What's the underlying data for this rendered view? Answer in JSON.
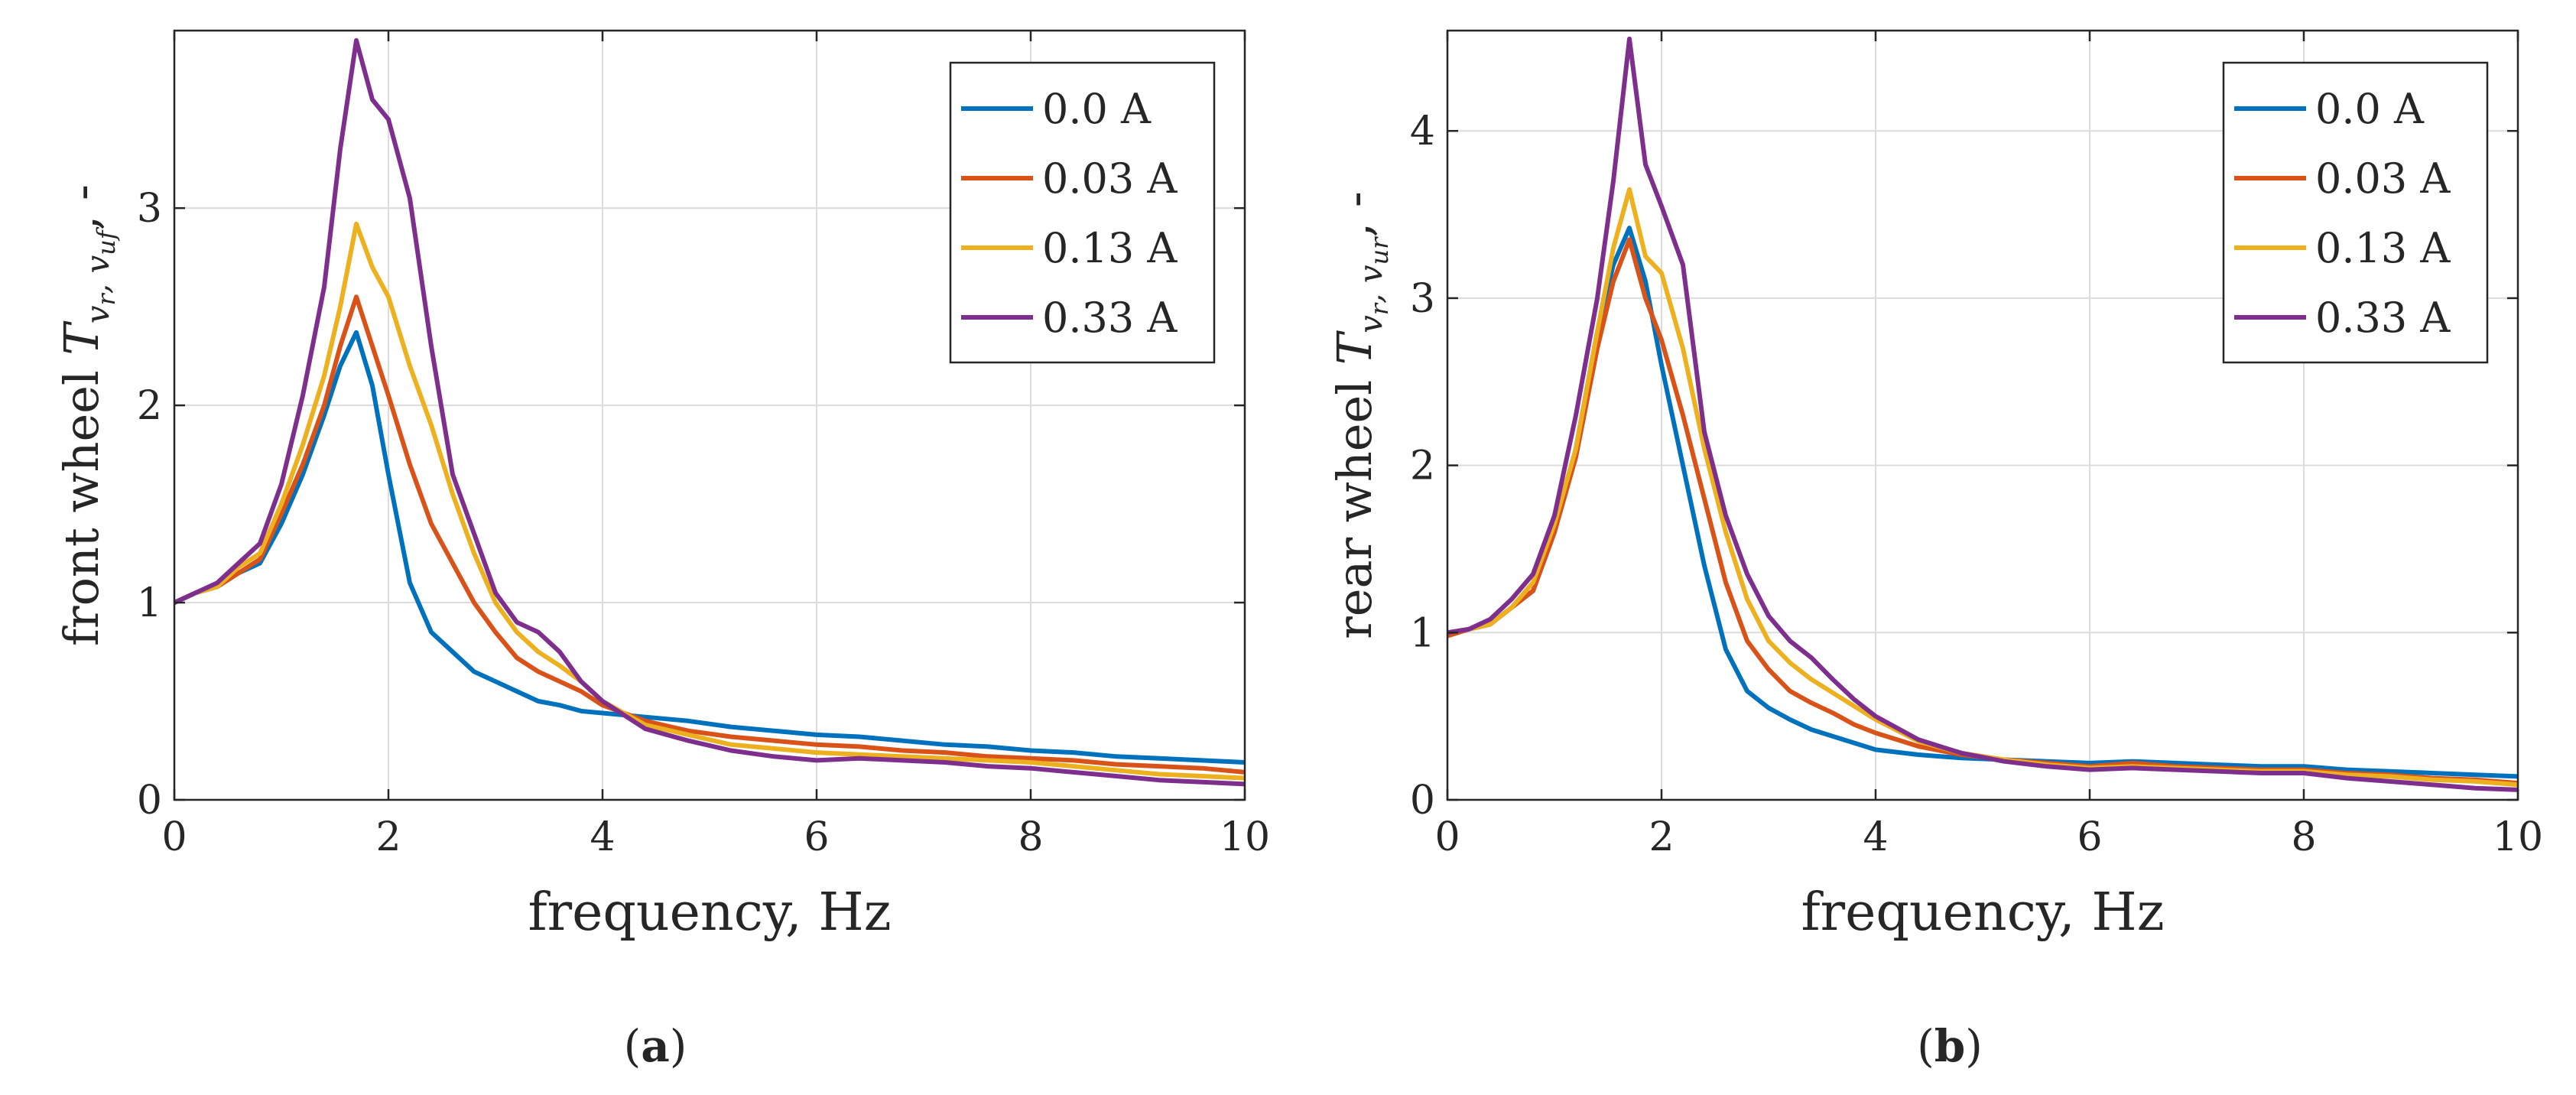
{
  "colors": {
    "series": [
      "#0072BD",
      "#D95319",
      "#EDB120",
      "#7E2F8E"
    ],
    "grid": "#dcdcdc",
    "axis": "#262626"
  },
  "chart_data": [
    {
      "type": "line",
      "panel_label": "a",
      "xlabel": "frequency, Hz",
      "ylabel_prefix": "front wheel ",
      "ylabel_symbol": "T",
      "ylabel_subscript": "v",
      "ylabel_sub2": "r",
      "ylabel_sub3": ", v",
      "ylabel_sub4": "uf",
      "ylabel_suffix": ", -",
      "xlim": [
        0,
        10
      ],
      "ylim": [
        0,
        3.9
      ],
      "xticks": [
        "0",
        "2",
        "4",
        "6",
        "8",
        "10"
      ],
      "yticks": [
        "0",
        "1",
        "2",
        "3"
      ],
      "grid": true,
      "legend_position": "top-right",
      "series": [
        {
          "name": "0.0 A",
          "x": [
            0,
            0.2,
            0.4,
            0.6,
            0.8,
            1.0,
            1.2,
            1.4,
            1.55,
            1.7,
            1.85,
            2.0,
            2.2,
            2.4,
            2.6,
            2.8,
            3.0,
            3.2,
            3.4,
            3.6,
            3.8,
            4.0,
            4.4,
            4.8,
            5.2,
            5.6,
            6.0,
            6.4,
            6.8,
            7.2,
            7.6,
            8.0,
            8.4,
            8.8,
            9.2,
            9.6,
            10.0
          ],
          "y": [
            1.0,
            1.05,
            1.08,
            1.15,
            1.2,
            1.4,
            1.65,
            1.95,
            2.2,
            2.37,
            2.1,
            1.65,
            1.1,
            0.85,
            0.75,
            0.65,
            0.6,
            0.55,
            0.5,
            0.48,
            0.45,
            0.44,
            0.42,
            0.4,
            0.37,
            0.35,
            0.33,
            0.32,
            0.3,
            0.28,
            0.27,
            0.25,
            0.24,
            0.22,
            0.21,
            0.2,
            0.19
          ]
        },
        {
          "name": "0.03 A",
          "x": [
            0,
            0.2,
            0.4,
            0.6,
            0.8,
            1.0,
            1.2,
            1.4,
            1.55,
            1.7,
            1.85,
            2.0,
            2.2,
            2.4,
            2.6,
            2.8,
            3.0,
            3.2,
            3.4,
            3.6,
            3.8,
            4.0,
            4.4,
            4.8,
            5.2,
            5.6,
            6.0,
            6.4,
            6.8,
            7.2,
            7.6,
            8.0,
            8.4,
            8.8,
            9.2,
            9.6,
            10.0
          ],
          "y": [
            1.0,
            1.05,
            1.08,
            1.15,
            1.22,
            1.45,
            1.7,
            2.0,
            2.3,
            2.55,
            2.3,
            2.05,
            1.7,
            1.4,
            1.2,
            1.0,
            0.85,
            0.72,
            0.65,
            0.6,
            0.55,
            0.48,
            0.4,
            0.35,
            0.32,
            0.3,
            0.28,
            0.27,
            0.25,
            0.24,
            0.22,
            0.21,
            0.2,
            0.18,
            0.17,
            0.16,
            0.14
          ]
        },
        {
          "name": "0.13 A",
          "x": [
            0,
            0.2,
            0.4,
            0.6,
            0.8,
            1.0,
            1.2,
            1.4,
            1.55,
            1.7,
            1.85,
            2.0,
            2.2,
            2.4,
            2.6,
            2.8,
            3.0,
            3.2,
            3.4,
            3.6,
            3.8,
            4.0,
            4.4,
            4.8,
            5.2,
            5.6,
            6.0,
            6.4,
            6.8,
            7.2,
            7.6,
            8.0,
            8.4,
            8.8,
            9.2,
            9.6,
            10.0
          ],
          "y": [
            1.0,
            1.05,
            1.08,
            1.18,
            1.25,
            1.5,
            1.8,
            2.15,
            2.5,
            2.92,
            2.7,
            2.55,
            2.2,
            1.9,
            1.55,
            1.25,
            1.0,
            0.85,
            0.75,
            0.68,
            0.6,
            0.5,
            0.38,
            0.33,
            0.28,
            0.26,
            0.24,
            0.23,
            0.22,
            0.21,
            0.2,
            0.19,
            0.17,
            0.15,
            0.13,
            0.12,
            0.11
          ]
        },
        {
          "name": "0.33 A",
          "x": [
            0,
            0.2,
            0.4,
            0.6,
            0.8,
            1.0,
            1.2,
            1.4,
            1.55,
            1.7,
            1.85,
            2.0,
            2.2,
            2.4,
            2.6,
            2.8,
            3.0,
            3.2,
            3.4,
            3.6,
            3.8,
            4.0,
            4.4,
            4.8,
            5.2,
            5.6,
            6.0,
            6.4,
            6.8,
            7.2,
            7.6,
            8.0,
            8.4,
            8.8,
            9.2,
            9.6,
            10.0
          ],
          "y": [
            1.0,
            1.05,
            1.1,
            1.2,
            1.3,
            1.6,
            2.05,
            2.6,
            3.3,
            3.85,
            3.55,
            3.45,
            3.05,
            2.3,
            1.65,
            1.35,
            1.05,
            0.9,
            0.85,
            0.75,
            0.6,
            0.5,
            0.36,
            0.3,
            0.25,
            0.22,
            0.2,
            0.21,
            0.2,
            0.19,
            0.17,
            0.16,
            0.14,
            0.12,
            0.1,
            0.09,
            0.08
          ]
        }
      ]
    },
    {
      "type": "line",
      "panel_label": "b",
      "xlabel": "frequency, Hz",
      "ylabel_prefix": "rear wheel ",
      "ylabel_symbol": "T",
      "ylabel_subscript": "v",
      "ylabel_sub2": "r",
      "ylabel_sub3": ", v",
      "ylabel_sub4": "ur",
      "ylabel_suffix": ", -",
      "xlim": [
        0,
        10
      ],
      "ylim": [
        0,
        4.6
      ],
      "xticks": [
        "0",
        "2",
        "4",
        "6",
        "8",
        "10"
      ],
      "yticks": [
        "0",
        "1",
        "2",
        "3",
        "4"
      ],
      "grid": true,
      "legend_position": "top-right",
      "series": [
        {
          "name": "0.0 A",
          "x": [
            0,
            0.2,
            0.4,
            0.6,
            0.8,
            1.0,
            1.2,
            1.4,
            1.55,
            1.7,
            1.85,
            2.0,
            2.2,
            2.4,
            2.6,
            2.8,
            3.0,
            3.2,
            3.4,
            3.6,
            3.8,
            4.0,
            4.4,
            4.8,
            5.2,
            5.6,
            6.0,
            6.4,
            6.8,
            7.2,
            7.6,
            8.0,
            8.4,
            8.8,
            9.2,
            9.6,
            10.0
          ],
          "y": [
            1.0,
            1.02,
            1.05,
            1.15,
            1.25,
            1.6,
            2.1,
            2.8,
            3.2,
            3.42,
            3.1,
            2.6,
            2.0,
            1.4,
            0.9,
            0.65,
            0.55,
            0.48,
            0.42,
            0.38,
            0.34,
            0.3,
            0.27,
            0.25,
            0.24,
            0.23,
            0.22,
            0.23,
            0.22,
            0.21,
            0.2,
            0.2,
            0.18,
            0.17,
            0.16,
            0.15,
            0.14
          ]
        },
        {
          "name": "0.03 A",
          "x": [
            0,
            0.2,
            0.4,
            0.6,
            0.8,
            1.0,
            1.2,
            1.4,
            1.55,
            1.7,
            1.85,
            2.0,
            2.2,
            2.4,
            2.6,
            2.8,
            3.0,
            3.2,
            3.4,
            3.6,
            3.8,
            4.0,
            4.4,
            4.8,
            5.2,
            5.6,
            6.0,
            6.4,
            6.8,
            7.2,
            7.6,
            8.0,
            8.4,
            8.8,
            9.2,
            9.6,
            10.0
          ],
          "y": [
            0.98,
            1.02,
            1.05,
            1.15,
            1.25,
            1.6,
            2.05,
            2.7,
            3.1,
            3.35,
            3.0,
            2.75,
            2.3,
            1.8,
            1.3,
            0.95,
            0.78,
            0.65,
            0.58,
            0.52,
            0.45,
            0.4,
            0.32,
            0.27,
            0.24,
            0.22,
            0.2,
            0.22,
            0.2,
            0.19,
            0.18,
            0.18,
            0.16,
            0.15,
            0.13,
            0.12,
            0.1
          ]
        },
        {
          "name": "0.13 A",
          "x": [
            0,
            0.2,
            0.4,
            0.6,
            0.8,
            1.0,
            1.2,
            1.4,
            1.55,
            1.7,
            1.85,
            2.0,
            2.2,
            2.4,
            2.6,
            2.8,
            3.0,
            3.2,
            3.4,
            3.6,
            3.8,
            4.0,
            4.4,
            4.8,
            5.2,
            5.6,
            6.0,
            6.4,
            6.8,
            7.2,
            7.6,
            8.0,
            8.4,
            8.8,
            9.2,
            9.6,
            10.0
          ],
          "y": [
            1.0,
            1.02,
            1.05,
            1.15,
            1.3,
            1.65,
            2.1,
            2.8,
            3.3,
            3.65,
            3.25,
            3.15,
            2.7,
            2.1,
            1.6,
            1.2,
            0.95,
            0.82,
            0.72,
            0.64,
            0.56,
            0.48,
            0.35,
            0.28,
            0.24,
            0.21,
            0.19,
            0.2,
            0.19,
            0.18,
            0.17,
            0.17,
            0.15,
            0.14,
            0.12,
            0.11,
            0.09
          ]
        },
        {
          "name": "0.33 A",
          "x": [
            0,
            0.2,
            0.4,
            0.6,
            0.8,
            1.0,
            1.2,
            1.4,
            1.55,
            1.7,
            1.85,
            2.0,
            2.2,
            2.4,
            2.6,
            2.8,
            3.0,
            3.2,
            3.4,
            3.6,
            3.8,
            4.0,
            4.4,
            4.8,
            5.2,
            5.6,
            6.0,
            6.4,
            6.8,
            7.2,
            7.6,
            8.0,
            8.4,
            8.8,
            9.2,
            9.6,
            10.0
          ],
          "y": [
            1.0,
            1.02,
            1.08,
            1.2,
            1.35,
            1.7,
            2.3,
            3.0,
            3.7,
            4.55,
            3.8,
            3.55,
            3.2,
            2.2,
            1.7,
            1.35,
            1.1,
            0.95,
            0.85,
            0.72,
            0.6,
            0.5,
            0.36,
            0.28,
            0.23,
            0.2,
            0.18,
            0.19,
            0.18,
            0.17,
            0.16,
            0.16,
            0.13,
            0.11,
            0.09,
            0.07,
            0.06
          ]
        }
      ]
    }
  ]
}
